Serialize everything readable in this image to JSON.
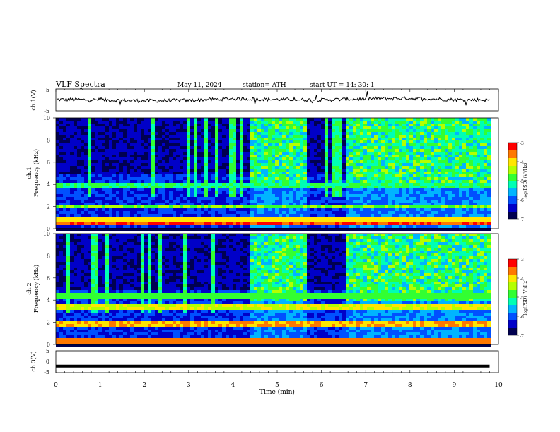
{
  "header": {
    "title": "VLF  Spectra",
    "date": "May 11, 2024",
    "station": "station= ATH",
    "start": "start  UT  =    14: 30: 1"
  },
  "chart_data": [
    {
      "type": "line",
      "panel": "ch1-voltage",
      "ylabel": "ch.1(V)",
      "ylim": [
        -5,
        5
      ],
      "y_ticks": [
        "5",
        "-5"
      ],
      "x": [
        0,
        1,
        2,
        3,
        4,
        5,
        6,
        7,
        8,
        9,
        9.8
      ],
      "series": [
        {
          "values": [
            0.2,
            0.0,
            -0.4,
            -0.2,
            0.6,
            0.2,
            0.0,
            0.5,
            0.8,
            0.1,
            0.0
          ]
        }
      ],
      "xlim": [
        0,
        10
      ]
    },
    {
      "type": "heatmap",
      "panel": "ch1-spectrogram",
      "ylabel": "ch.1\nFrequency  (kHz)",
      "ylim": [
        0,
        10
      ],
      "y_ticks": [
        "0",
        "2",
        "4",
        "6",
        "8",
        "10"
      ],
      "xlim": [
        0,
        10
      ],
      "colorbar": {
        "label": "log(PSD) (V²/Hz)",
        "ticks": [
          "-3",
          "-4",
          "-5",
          "-6",
          "-7"
        ],
        "range": [
          -7,
          -3
        ]
      },
      "regions": [
        {
          "t_start": 0.0,
          "t_end": 4.37,
          "state": "quiet"
        },
        {
          "t_start": 4.37,
          "t_end": 5.6,
          "state": "active"
        },
        {
          "t_start": 5.6,
          "t_end": 6.5,
          "state": "quiet"
        },
        {
          "t_start": 6.5,
          "t_end": 9.8,
          "state": "active"
        }
      ],
      "bands_khz": [
        {
          "f": 0.6,
          "level": -3.4
        },
        {
          "f": 1.0,
          "level": -4.0
        },
        {
          "f": 2.1,
          "level": -4.6
        },
        {
          "f": 4.0,
          "level": -5.0
        }
      ]
    },
    {
      "type": "heatmap",
      "panel": "ch2-spectrogram",
      "ylabel": "ch.2\nFrequency  (kHz)",
      "ylim": [
        0,
        10
      ],
      "y_ticks": [
        "0",
        "2",
        "4",
        "6",
        "8",
        "10"
      ],
      "xlim": [
        0,
        10
      ],
      "colorbar": {
        "label": "log(PSD) (V²/Hz)",
        "ticks": [
          "-3",
          "-4",
          "-5",
          "-6",
          "-7"
        ],
        "range": [
          -7,
          -3
        ]
      },
      "regions": [
        {
          "t_start": 0.0,
          "t_end": 4.37,
          "state": "quiet"
        },
        {
          "t_start": 4.37,
          "t_end": 5.6,
          "state": "active"
        },
        {
          "t_start": 5.6,
          "t_end": 6.5,
          "state": "quiet"
        },
        {
          "t_start": 6.5,
          "t_end": 9.8,
          "state": "active"
        }
      ],
      "bands_khz": [
        {
          "f": 0.5,
          "level": -3.6
        },
        {
          "f": 2.0,
          "level": -3.8
        },
        {
          "f": 3.6,
          "level": -4.2
        },
        {
          "f": 4.6,
          "level": -4.8
        }
      ]
    },
    {
      "type": "line",
      "panel": "ch3-voltage",
      "ylabel": "ch.3(V)",
      "ylim": [
        -5,
        5
      ],
      "y_ticks": [
        "5",
        "0",
        "-5"
      ],
      "x": [
        0,
        9.8
      ],
      "series": [
        {
          "values": [
            -2.0,
            -2.0
          ]
        }
      ],
      "xlim": [
        0,
        10
      ],
      "xlabel": "Time  (min)",
      "x_ticks": [
        "0",
        "1",
        "2",
        "3",
        "4",
        "5",
        "6",
        "7",
        "8",
        "9",
        "10"
      ]
    }
  ],
  "colors": {
    "colormap": [
      "#000050",
      "#0000c8",
      "#0050ff",
      "#00b4ff",
      "#00ffb4",
      "#32ff32",
      "#b4ff00",
      "#ffe600",
      "#ff7800",
      "#ff0000",
      "#ffffff"
    ],
    "line": "#000000",
    "axis": "#000000"
  }
}
